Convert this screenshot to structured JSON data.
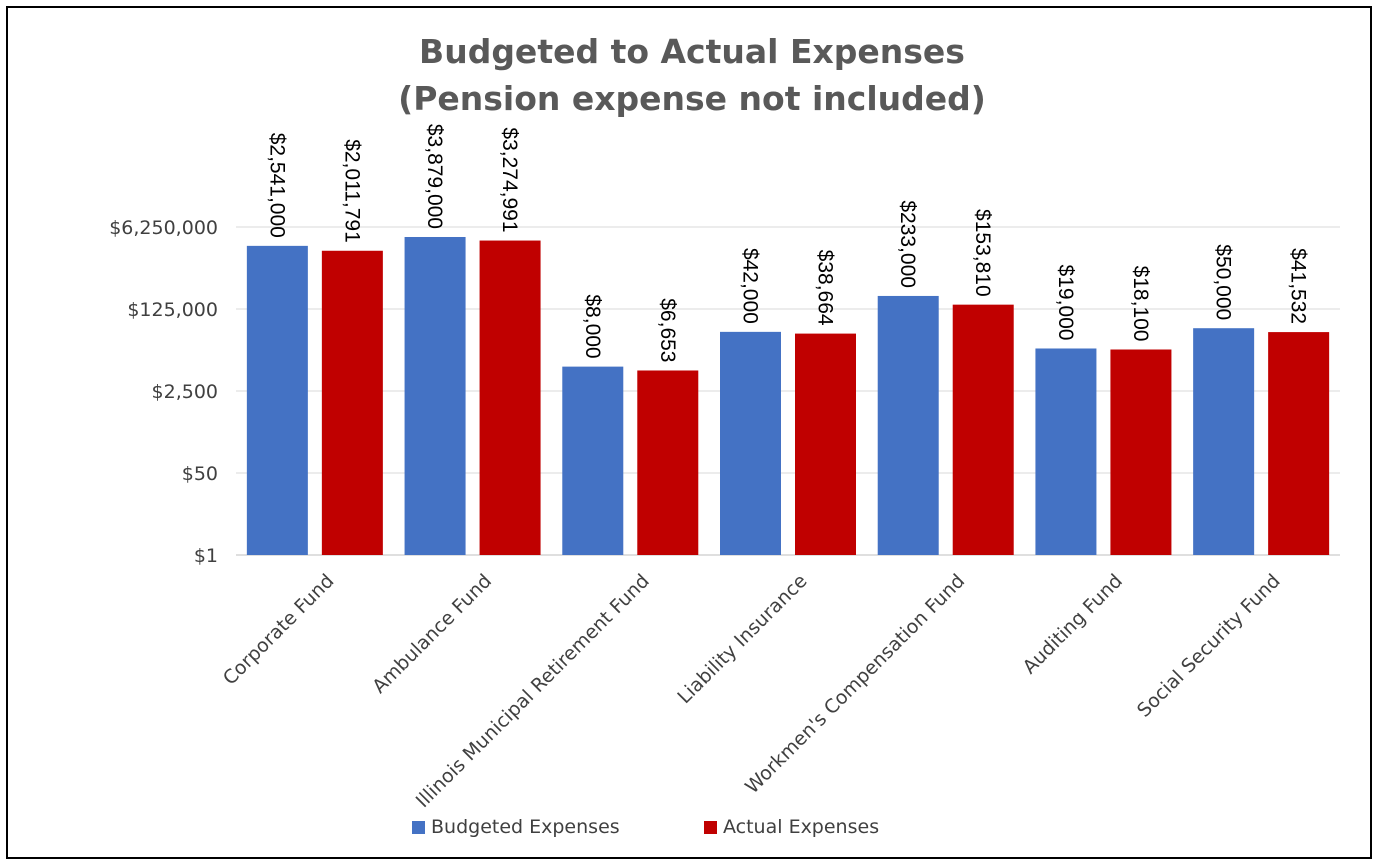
{
  "chart_data": {
    "type": "bar",
    "title": [
      "Budgeted to Actual Expenses",
      "(Pension expense not included)"
    ],
    "y_scale": "log",
    "y_ticks": [
      {
        "value": 1,
        "label": "$1"
      },
      {
        "value": 50,
        "label": "$50"
      },
      {
        "value": 2500,
        "label": "$2,500"
      },
      {
        "value": 125000,
        "label": "$125,000"
      },
      {
        "value": 6250000,
        "label": "$6,250,000"
      }
    ],
    "ylim": [
      1,
      6250000
    ],
    "grid": true,
    "legend_position": "bottom",
    "categories": [
      "Corporate Fund",
      "Ambulance Fund",
      "Illinois Municipal Retirement Fund",
      "Liability Insurance",
      "Workmen's Compensation Fund",
      "Auditing Fund",
      "Social Security Fund"
    ],
    "series": [
      {
        "name": "Budgeted Expenses",
        "color": "#4472C4",
        "values": [
          2541000,
          3879000,
          8000,
          42000,
          233000,
          19000,
          50000
        ],
        "labels": [
          "$2,541,000",
          "$3,879,000",
          "$8,000",
          "$42,000",
          "$233,000",
          "$19,000",
          "$50,000"
        ]
      },
      {
        "name": "Actual Expenses",
        "color": "#C00000",
        "values": [
          2011791,
          3274991,
          6653,
          38664,
          153810,
          18100,
          41532
        ],
        "labels": [
          "$2,011,791",
          "$3,274,991",
          "$6,653",
          "$38,664",
          "$153,810",
          "$18,100",
          "$41,532"
        ]
      }
    ]
  }
}
